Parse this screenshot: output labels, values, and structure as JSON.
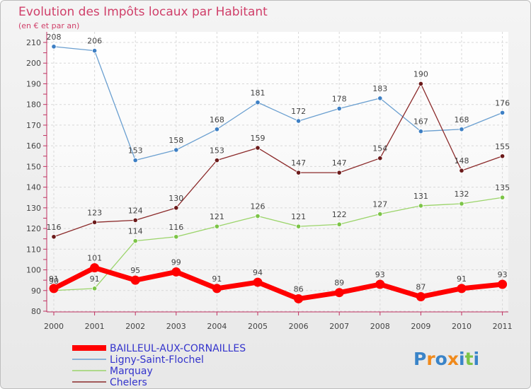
{
  "chart_data": {
    "type": "line",
    "title": "Evolution des Impôts locaux par Habitant",
    "subtitle": "(en € et par an)",
    "xlabel": "",
    "ylabel": "",
    "ylim": [
      80,
      210
    ],
    "yticks": [
      "80",
      "90",
      "100",
      "110",
      "120",
      "130",
      "140",
      "150",
      "160",
      "170",
      "180",
      "190",
      "200",
      "210"
    ],
    "grid": true,
    "legend_position": "bottom-left",
    "categories": [
      "2000",
      "2001",
      "2002",
      "2003",
      "2004",
      "2005",
      "2006",
      "2007",
      "2008",
      "2009",
      "2010",
      "2011"
    ],
    "series": [
      {
        "name": "Ligny-Saint-Flochel",
        "color": "#6a9fd0",
        "marker_color": "#3d7fc4",
        "values": [
          208,
          206,
          153,
          158,
          168,
          181,
          172,
          178,
          183,
          167,
          168,
          176
        ],
        "labels": [
          "208",
          "206",
          "153",
          "158",
          "168",
          "181",
          "172",
          "178",
          "183",
          "167",
          "168",
          "176"
        ]
      },
      {
        "name": "Chelers",
        "color": "#8b2a2a",
        "marker_color": "#6b1a1a",
        "values": [
          116,
          123,
          124,
          130,
          153,
          159,
          147,
          147,
          154,
          190,
          148,
          155
        ],
        "labels": [
          "116",
          "123",
          "124",
          "130",
          "153",
          "159",
          "147",
          "147",
          "154",
          "190",
          "148",
          "155"
        ]
      },
      {
        "name": "Marquay",
        "color": "#9bd46a",
        "marker_color": "#7cc447",
        "values": [
          90,
          91,
          114,
          116,
          121,
          126,
          121,
          122,
          127,
          131,
          132,
          135
        ],
        "labels": [
          "90",
          "91",
          "114",
          "116",
          "121",
          "126",
          "121",
          "122",
          "127",
          "131",
          "132",
          "135"
        ]
      },
      {
        "name": "BAILLEUL-AUX-CORNAILLES",
        "color": "#ff0000",
        "marker_color": "#ff0000",
        "values": [
          91,
          101,
          95,
          99,
          91,
          94,
          86,
          89,
          93,
          87,
          91,
          93
        ],
        "labels": [
          "91",
          "101",
          "95",
          "99",
          "91",
          "94",
          "86",
          "89",
          "93",
          "87",
          "91",
          "93"
        ]
      }
    ],
    "legend": [
      {
        "name": "BAILLEUL-AUX-CORNAILLES",
        "color": "#ff0000",
        "thick": true
      },
      {
        "name": "Ligny-Saint-Flochel",
        "color": "#6a9fd0",
        "thick": false
      },
      {
        "name": "Marquay",
        "color": "#9bd46a",
        "thick": false
      },
      {
        "name": "Chelers",
        "color": "#8b2a2a",
        "thick": false
      }
    ],
    "watermark": "Proxiti"
  }
}
